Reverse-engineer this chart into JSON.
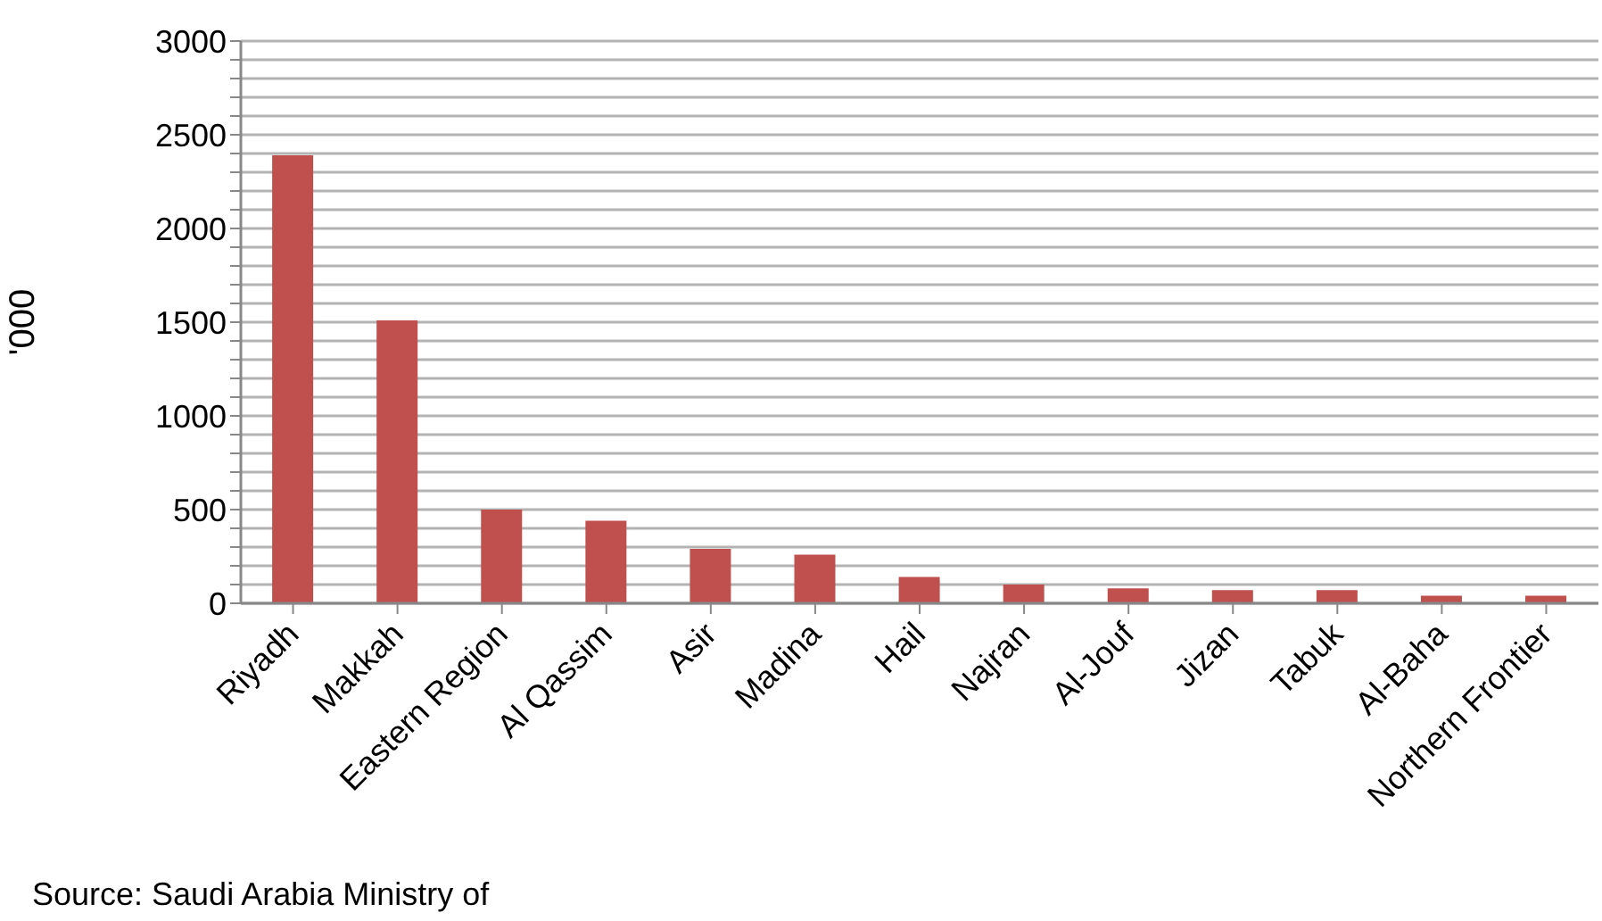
{
  "chart_data": {
    "type": "bar",
    "ylabel": "'000",
    "categories": [
      "Riyadh",
      "Makkah",
      "Eastern Region",
      "Al Qassim",
      "Asir",
      "Madina",
      "Hail",
      "Najran",
      "Al-Jouf",
      "Jizan",
      "Tabuk",
      "Al-Baha",
      "Northern Frontier"
    ],
    "values": [
      2390,
      1510,
      500,
      440,
      290,
      260,
      140,
      100,
      80,
      70,
      70,
      40,
      40
    ],
    "color": "#c0504d",
    "ylim": [
      0,
      3000
    ],
    "yticks": [
      0,
      {
        "value": 100,
        "label": null
      },
      {
        "value": 200,
        "label": null
      },
      {
        "value": 300,
        "label": null
      },
      {
        "value": 400,
        "label": null
      },
      500,
      {
        "value": 600,
        "label": null
      },
      {
        "value": 700,
        "label": null
      },
      {
        "value": 800,
        "label": null
      },
      {
        "value": 900,
        "label": null
      },
      1000,
      {
        "value": 1100,
        "label": null
      },
      {
        "value": 1200,
        "label": null
      },
      {
        "value": 1300,
        "label": null
      },
      {
        "value": 1400,
        "label": null
      },
      1500,
      {
        "value": 1600,
        "label": null
      },
      {
        "value": 1700,
        "label": null
      },
      {
        "value": 1800,
        "label": null
      },
      {
        "value": 1900,
        "label": null
      },
      2000,
      {
        "value": 2100,
        "label": null
      },
      {
        "value": 2200,
        "label": null
      },
      {
        "value": 2300,
        "label": null
      },
      {
        "value": 2400,
        "label": null
      },
      2500,
      {
        "value": 2600,
        "label": null
      },
      {
        "value": 2700,
        "label": null
      },
      {
        "value": 2800,
        "label": null
      },
      {
        "value": 2900,
        "label": null
      },
      3000
    ],
    "grid": "y",
    "legend": false,
    "annotations": [
      "Source: Saudi Arabia Ministry of"
    ]
  }
}
